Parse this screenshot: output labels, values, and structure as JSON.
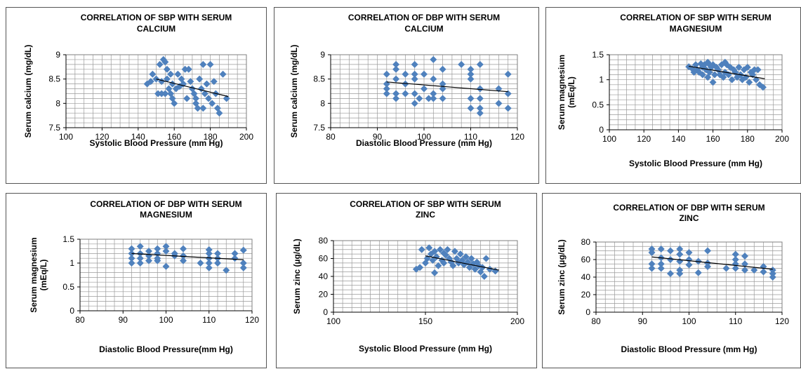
{
  "chart_data": [
    {
      "type": "scatter",
      "title_lines": [
        "CORRELATION OF SBP WITH SERUM",
        "CALCIUM"
      ],
      "xlabel": "Systolic Blood Pressure (mm Hg)",
      "ylabel_lines": [
        "Serum calcium (mg/dL)"
      ],
      "xlim": [
        100,
        200
      ],
      "ylim": [
        7.5,
        9
      ],
      "xticks": [
        "100",
        "120",
        "140",
        "160",
        "180",
        "200"
      ],
      "yticks": [
        "7.5",
        "8",
        "8.5",
        "9"
      ],
      "xminor": 5,
      "yminor": 0.1,
      "marker_color": "#4f81bd",
      "trendline": [
        [
          150,
          8.5
        ],
        [
          190,
          8.14
        ]
      ],
      "points": [
        [
          145,
          8.4
        ],
        [
          147,
          8.45
        ],
        [
          148,
          8.6
        ],
        [
          150,
          8.5
        ],
        [
          151,
          8.2
        ],
        [
          152,
          8.8
        ],
        [
          153,
          8.2
        ],
        [
          153,
          8.45
        ],
        [
          154,
          8.9
        ],
        [
          155,
          8.2
        ],
        [
          155,
          8.85
        ],
        [
          156,
          8.5
        ],
        [
          156,
          8.7
        ],
        [
          157,
          8.3
        ],
        [
          158,
          8.2
        ],
        [
          158,
          8.6
        ],
        [
          159,
          8.4
        ],
        [
          159,
          8.1
        ],
        [
          160,
          8.0
        ],
        [
          161,
          8.3
        ],
        [
          162,
          8.6
        ],
        [
          163,
          8.35
        ],
        [
          164,
          8.5
        ],
        [
          165,
          8.4
        ],
        [
          166,
          8.7
        ],
        [
          167,
          8.1
        ],
        [
          168,
          8.7
        ],
        [
          169,
          8.45
        ],
        [
          170,
          8.3
        ],
        [
          171,
          8.2
        ],
        [
          172,
          8.1
        ],
        [
          172,
          8.0
        ],
        [
          173,
          7.9
        ],
        [
          174,
          8.5
        ],
        [
          175,
          8.3
        ],
        [
          176,
          8.8
        ],
        [
          176,
          7.9
        ],
        [
          177,
          8.2
        ],
        [
          178,
          8.4
        ],
        [
          179,
          8.1
        ],
        [
          180,
          8.8
        ],
        [
          181,
          8.0
        ],
        [
          182,
          8.45
        ],
        [
          183,
          8.2
        ],
        [
          184,
          7.9
        ],
        [
          185,
          7.8
        ],
        [
          187,
          8.6
        ],
        [
          189,
          8.1
        ]
      ]
    },
    {
      "type": "scatter",
      "title_lines": [
        "CORRELATION OF DBP WITH SERUM",
        "CALCIUM"
      ],
      "xlabel": "Diastolic Blood Pressure (mm Hg)",
      "ylabel_lines": [
        "Serum calcium (mg/dL)"
      ],
      "xlim": [
        80,
        120
      ],
      "ylim": [
        7.5,
        9
      ],
      "xticks": [
        "80",
        "90",
        "100",
        "110",
        "120"
      ],
      "yticks": [
        "7.5",
        "8",
        "8.5",
        "9"
      ],
      "xminor": 2,
      "yminor": 0.1,
      "marker_color": "#4f81bd",
      "trendline": [
        [
          92,
          8.44
        ],
        [
          118,
          8.24
        ]
      ],
      "points": [
        [
          92,
          8.6
        ],
        [
          92,
          8.4
        ],
        [
          92,
          8.2
        ],
        [
          92,
          8.3
        ],
        [
          94,
          8.7
        ],
        [
          94,
          8.5
        ],
        [
          94,
          8.2
        ],
        [
          94,
          8.1
        ],
        [
          94,
          8.8
        ],
        [
          96,
          8.4
        ],
        [
          96,
          8.6
        ],
        [
          96,
          8.2
        ],
        [
          98,
          8.8
        ],
        [
          98,
          8.5
        ],
        [
          98,
          8.2
        ],
        [
          98,
          8.0
        ],
        [
          98,
          8.6
        ],
        [
          99,
          8.1
        ],
        [
          100,
          8.6
        ],
        [
          100,
          8.3
        ],
        [
          101,
          8.1
        ],
        [
          102,
          8.9
        ],
        [
          102,
          8.5
        ],
        [
          102,
          8.2
        ],
        [
          102,
          8.1
        ],
        [
          104,
          8.7
        ],
        [
          104,
          8.4
        ],
        [
          104,
          8.3
        ],
        [
          104,
          8.1
        ],
        [
          108,
          8.8
        ],
        [
          110,
          8.7
        ],
        [
          110,
          8.5
        ],
        [
          110,
          8.6
        ],
        [
          110,
          8.1
        ],
        [
          110,
          7.9
        ],
        [
          112,
          8.8
        ],
        [
          112,
          8.3
        ],
        [
          112,
          8.1
        ],
        [
          112,
          7.9
        ],
        [
          112,
          7.8
        ],
        [
          116,
          8.3
        ],
        [
          116,
          8.0
        ],
        [
          118,
          8.6
        ],
        [
          118,
          8.2
        ],
        [
          118,
          7.9
        ]
      ]
    },
    {
      "type": "scatter",
      "title_lines": [
        "CORRELATION OF SBP WITH SERUM",
        "MAGNESIUM"
      ],
      "xlabel": "Systolic Blood Pressure (mm Hg)",
      "ylabel_lines": [
        "Serum magnesium",
        "(mEq/L)"
      ],
      "xlim": [
        100,
        200
      ],
      "ylim": [
        0,
        1.5
      ],
      "xticks": [
        "100",
        "120",
        "140",
        "160",
        "180",
        "200"
      ],
      "yticks": [
        "0",
        "0.5",
        "1",
        "1.5"
      ],
      "xminor": 5,
      "yminor": 0.1,
      "marker_color": "#4f81bd",
      "trendline": [
        [
          146,
          1.27
        ],
        [
          190,
          1.02
        ]
      ],
      "points": [
        [
          146,
          1.26
        ],
        [
          148,
          1.22
        ],
        [
          149,
          1.15
        ],
        [
          150,
          1.3
        ],
        [
          151,
          1.2
        ],
        [
          152,
          1.15
        ],
        [
          153,
          1.32
        ],
        [
          154,
          1.25
        ],
        [
          154,
          1.1
        ],
        [
          155,
          1.3
        ],
        [
          156,
          1.2
        ],
        [
          157,
          1.35
        ],
        [
          157,
          1.05
        ],
        [
          158,
          1.3
        ],
        [
          158,
          1.15
        ],
        [
          159,
          1.25
        ],
        [
          160,
          0.95
        ],
        [
          160,
          1.3
        ],
        [
          161,
          1.1
        ],
        [
          162,
          1.25
        ],
        [
          163,
          1.2
        ],
        [
          164,
          1.1
        ],
        [
          165,
          1.3
        ],
        [
          166,
          1.05
        ],
        [
          167,
          1.35
        ],
        [
          167,
          1.15
        ],
        [
          168,
          1.3
        ],
        [
          169,
          1.1
        ],
        [
          170,
          1.25
        ],
        [
          171,
          1.0
        ],
        [
          172,
          1.2
        ],
        [
          173,
          1.15
        ],
        [
          174,
          1.05
        ],
        [
          175,
          1.25
        ],
        [
          176,
          1.1
        ],
        [
          177,
          1.0
        ],
        [
          178,
          1.2
        ],
        [
          179,
          1.05
        ],
        [
          180,
          1.25
        ],
        [
          181,
          0.95
        ],
        [
          182,
          1.15
        ],
        [
          183,
          1.1
        ],
        [
          184,
          1.2
        ],
        [
          185,
          1.0
        ],
        [
          186,
          1.2
        ],
        [
          187,
          0.9
        ],
        [
          189,
          0.85
        ]
      ]
    },
    {
      "type": "scatter",
      "title_lines": [
        "CORRELATION OF DBP WITH SERUM",
        "MAGNESIUM"
      ],
      "xlabel": "Diastolic Blood Pressure(mm Hg)",
      "ylabel_lines": [
        "Serum magnesium",
        "(mEq/L)"
      ],
      "xlim": [
        80,
        120
      ],
      "ylim": [
        0,
        1.5
      ],
      "xticks": [
        "80",
        "90",
        "100",
        "110",
        "120"
      ],
      "yticks": [
        "0",
        "0.5",
        "1",
        "1.5"
      ],
      "xminor": 2,
      "yminor": 0.1,
      "marker_color": "#4f81bd",
      "trendline": [
        [
          92,
          1.2
        ],
        [
          118,
          1.07
        ]
      ],
      "points": [
        [
          92,
          1.3
        ],
        [
          92,
          1.2
        ],
        [
          92,
          1.1
        ],
        [
          92,
          1.0
        ],
        [
          94,
          1.35
        ],
        [
          94,
          1.2
        ],
        [
          94,
          1.1
        ],
        [
          94,
          1.0
        ],
        [
          96,
          1.25
        ],
        [
          96,
          1.15
        ],
        [
          96,
          1.05
        ],
        [
          98,
          1.3
        ],
        [
          98,
          1.2
        ],
        [
          98,
          1.1
        ],
        [
          98,
          1.05
        ],
        [
          100,
          1.35
        ],
        [
          100,
          1.25
        ],
        [
          100,
          0.93
        ],
        [
          102,
          1.2
        ],
        [
          102,
          1.15
        ],
        [
          104,
          1.3
        ],
        [
          104,
          1.15
        ],
        [
          104,
          1.05
        ],
        [
          108,
          1.0
        ],
        [
          110,
          1.28
        ],
        [
          110,
          1.2
        ],
        [
          110,
          1.1
        ],
        [
          110,
          1.0
        ],
        [
          110,
          0.9
        ],
        [
          112,
          1.2
        ],
        [
          112,
          1.1
        ],
        [
          112,
          1.0
        ],
        [
          114,
          0.85
        ],
        [
          116,
          1.2
        ],
        [
          116,
          1.1
        ],
        [
          118,
          1.27
        ],
        [
          118,
          1.0
        ],
        [
          118,
          0.9
        ]
      ]
    },
    {
      "type": "scatter",
      "title_lines": [
        "CORRELATION OF SBP WITH SERUM",
        "ZINC"
      ],
      "xlabel": "Systolic Blood Pressure (mm Hg)",
      "ylabel_lines": [
        "Serum zinc (µg/dL)"
      ],
      "xlim": [
        100,
        200
      ],
      "ylim": [
        0,
        80
      ],
      "xticks": [
        "100",
        "150",
        "200"
      ],
      "yticks": [
        "0",
        "20",
        "40",
        "60",
        "80"
      ],
      "xminor": 5,
      "yminor": 5,
      "marker_color": "#4f81bd",
      "trendline": [
        [
          150,
          63
        ],
        [
          190,
          47
        ]
      ],
      "points": [
        [
          145,
          48
        ],
        [
          147,
          50
        ],
        [
          148,
          70
        ],
        [
          150,
          55
        ],
        [
          151,
          60
        ],
        [
          152,
          72
        ],
        [
          153,
          65
        ],
        [
          154,
          58
        ],
        [
          155,
          44
        ],
        [
          155,
          68
        ],
        [
          156,
          62
        ],
        [
          157,
          52
        ],
        [
          158,
          70
        ],
        [
          159,
          58
        ],
        [
          160,
          55
        ],
        [
          160,
          66
        ],
        [
          161,
          64
        ],
        [
          162,
          70
        ],
        [
          163,
          60
        ],
        [
          164,
          56
        ],
        [
          165,
          52
        ],
        [
          166,
          68
        ],
        [
          167,
          60
        ],
        [
          168,
          55
        ],
        [
          169,
          65
        ],
        [
          170,
          58
        ],
        [
          171,
          53
        ],
        [
          172,
          62
        ],
        [
          173,
          56
        ],
        [
          174,
          50
        ],
        [
          175,
          60
        ],
        [
          176,
          54
        ],
        [
          177,
          48
        ],
        [
          178,
          56
        ],
        [
          179,
          52
        ],
        [
          180,
          45
        ],
        [
          181,
          50
        ],
        [
          182,
          40
        ],
        [
          183,
          60
        ],
        [
          185,
          48
        ],
        [
          188,
          46
        ]
      ]
    },
    {
      "type": "scatter",
      "title_lines": [
        "CORRELATION OF DBP WITH SERUM",
        "ZINC"
      ],
      "xlabel": "Diastolic Blood Pressure (mm Hg)",
      "ylabel_lines": [
        "Serum zinc (µg/dL)"
      ],
      "xlim": [
        80,
        120
      ],
      "ylim": [
        0,
        80
      ],
      "xticks": [
        "80",
        "90",
        "100",
        "110",
        "120"
      ],
      "yticks": [
        "0",
        "20",
        "40",
        "60",
        "80"
      ],
      "xminor": 2,
      "yminor": 5,
      "marker_color": "#4f81bd",
      "trendline": [
        [
          92,
          63
        ],
        [
          118,
          49
        ]
      ],
      "points": [
        [
          92,
          72
        ],
        [
          92,
          68
        ],
        [
          92,
          55
        ],
        [
          92,
          50
        ],
        [
          94,
          72
        ],
        [
          94,
          62
        ],
        [
          94,
          55
        ],
        [
          94,
          50
        ],
        [
          96,
          70
        ],
        [
          96,
          60
        ],
        [
          96,
          44
        ],
        [
          98,
          72
        ],
        [
          98,
          66
        ],
        [
          98,
          58
        ],
        [
          98,
          48
        ],
        [
          98,
          44
        ],
        [
          100,
          68
        ],
        [
          100,
          60
        ],
        [
          100,
          54
        ],
        [
          102,
          58
        ],
        [
          102,
          45
        ],
        [
          104,
          70
        ],
        [
          104,
          56
        ],
        [
          104,
          52
        ],
        [
          108,
          50
        ],
        [
          110,
          66
        ],
        [
          110,
          60
        ],
        [
          110,
          55
        ],
        [
          110,
          50
        ],
        [
          112,
          64
        ],
        [
          112,
          55
        ],
        [
          112,
          48
        ],
        [
          114,
          48
        ],
        [
          116,
          52
        ],
        [
          116,
          46
        ],
        [
          118,
          48
        ],
        [
          118,
          44
        ],
        [
          118,
          40
        ]
      ]
    }
  ]
}
